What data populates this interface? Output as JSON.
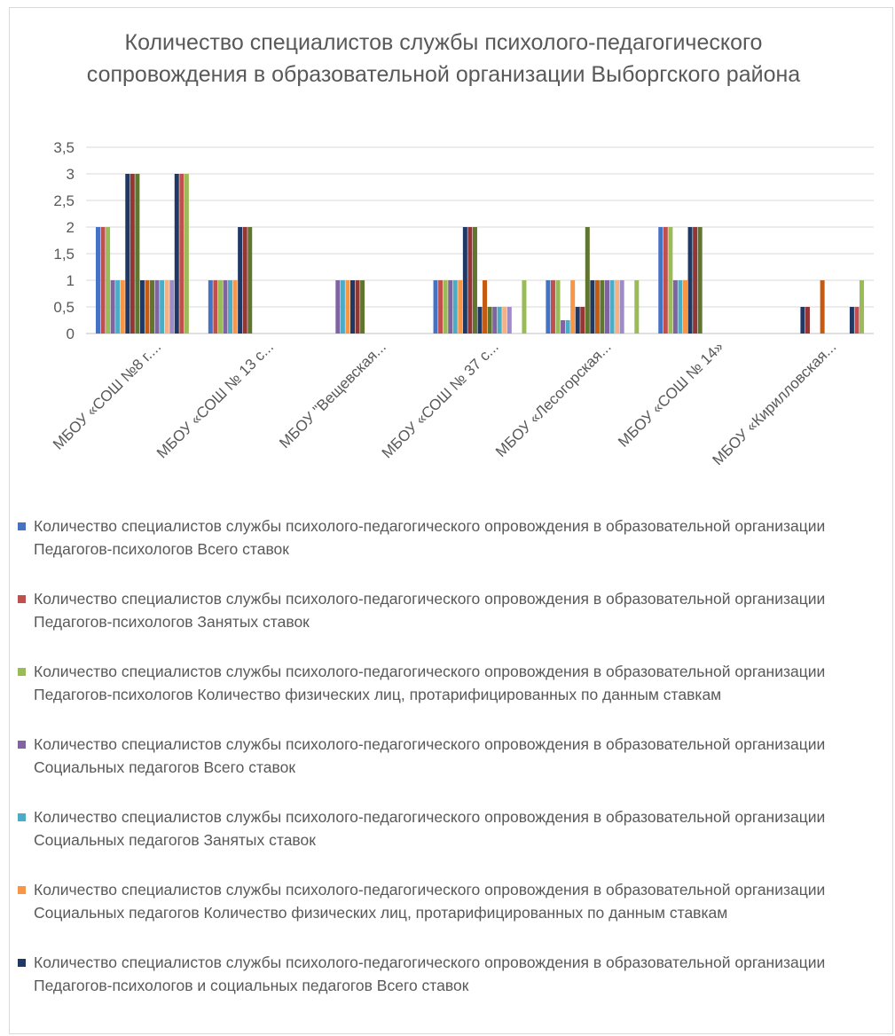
{
  "chart_data": {
    "type": "bar",
    "title": "Количество специалистов службы психолого-педагогического сопровождения в образовательной организации Выборгского района",
    "xlabel": "",
    "ylabel": "",
    "ylim": [
      0,
      3.5
    ],
    "yticks": [
      "0",
      "0,5",
      "1",
      "1,5",
      "2",
      "2,5",
      "3",
      "3,5"
    ],
    "grid": true,
    "legend_position": "bottom",
    "categories": [
      "МБОУ «СОШ №8 г....",
      "МБОУ «СОШ № 13 с...",
      "МБОУ \"Вещевская...",
      "МБОУ «СОШ № 37 с...",
      "МБОУ «Лесогорская...",
      "МБОУ «СОШ № 14»",
      "МБОУ «Кирилловская..."
    ],
    "series": [
      {
        "name": "Количество специалистов службы психолого-педагогического опровождения в образовательной организации Педагогов-психологов Всего ставок",
        "color": "#4472C4",
        "values": [
          2,
          1,
          0,
          1,
          1,
          2,
          0
        ]
      },
      {
        "name": "Количество специалистов службы психолого-педагогического опровождения в образовательной организации Педагогов-психологов Занятых ставок",
        "color": "#C0504D",
        "values": [
          2,
          1,
          0,
          1,
          1,
          2,
          0
        ]
      },
      {
        "name": "Количество специалистов службы психолого-педагогического опровождения в образовательной организации Педагогов-психологов Количество физических лиц, протарифицированных по данным ставкам",
        "color": "#9BBB59",
        "values": [
          2,
          1,
          0,
          1,
          1,
          2,
          0
        ]
      },
      {
        "name": "Количество специалистов службы психолого-педагогического опровождения в образовательной организации Социальных педагогов Всего ставок",
        "color": "#8064A2",
        "values": [
          1,
          1,
          1,
          1,
          0.25,
          1,
          0
        ]
      },
      {
        "name": "Количество специалистов службы психолого-педагогического опровождения в образовательной организации Социальных педагогов Занятых ставок",
        "color": "#4BACC6",
        "values": [
          1,
          1,
          1,
          1,
          0.25,
          1,
          0
        ]
      },
      {
        "name": "Количество специалистов службы психолого-педагогического опровождения в образовательной организации Социальных педагогов Количество физических лиц, протарифицированных по данным ставкам",
        "color": "#F79646",
        "values": [
          1,
          1,
          1,
          1,
          1,
          1,
          0
        ]
      },
      {
        "name": "Количество специалистов службы психолого-педагогического опровождения в образовательной организации Педагогов-психологов и социальных педагогов Всего ставок",
        "color": "#1F3864",
        "values": [
          3,
          2,
          1,
          2,
          0.5,
          2,
          0.5
        ]
      },
      {
        "color": "#943634",
        "values": [
          3,
          2,
          1,
          2,
          0.5,
          2,
          0.5
        ]
      },
      {
        "color": "#5F7530",
        "values": [
          3,
          2,
          1,
          2,
          2,
          2,
          0
        ]
      },
      {
        "color": "#1F3864",
        "values": [
          1,
          0,
          0,
          0.5,
          1,
          0,
          0
        ]
      },
      {
        "color": "#C55A11",
        "values": [
          1,
          0,
          0,
          1,
          1,
          0,
          1
        ]
      },
      {
        "color": "#5F7530",
        "values": [
          1,
          0,
          0,
          0.5,
          1,
          0,
          0
        ]
      },
      {
        "color": "#8064A2",
        "values": [
          1,
          0,
          0,
          0.5,
          1,
          0,
          0
        ]
      },
      {
        "color": "#4BACC6",
        "values": [
          1,
          0,
          0,
          0.5,
          1,
          0,
          0
        ]
      },
      {
        "color": "#F4B183",
        "values": [
          1,
          0,
          0,
          0.5,
          1,
          0,
          0
        ]
      },
      {
        "color": "#9E8CC9",
        "values": [
          1,
          0,
          0,
          0.5,
          1,
          0,
          0
        ]
      },
      {
        "color": "#1F3864",
        "values": [
          3,
          0,
          0,
          0,
          0,
          0,
          0.5
        ]
      },
      {
        "color": "#C0504D",
        "values": [
          3,
          0,
          0,
          0,
          0,
          0,
          0.5
        ]
      },
      {
        "color": "#9BBB59",
        "values": [
          3,
          0,
          0,
          1,
          1,
          0,
          1
        ]
      }
    ]
  }
}
